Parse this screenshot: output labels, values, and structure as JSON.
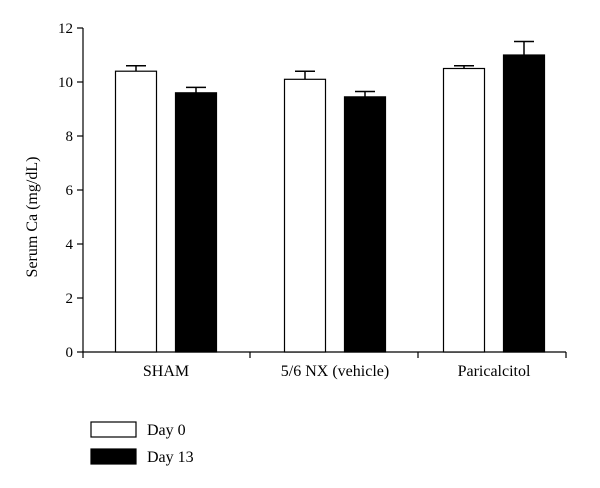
{
  "chart_data": {
    "type": "bar",
    "ylabel": "Serum Ca (mg/dL)",
    "xlabel": "",
    "ylim": [
      0,
      12
    ],
    "yticks": [
      "0",
      "2",
      "4",
      "6",
      "8",
      "10",
      "12"
    ],
    "categories": [
      "SHAM",
      "5/6 NX (vehicle)",
      "Paricalcitol"
    ],
    "series": [
      {
        "name": "Day 0",
        "color": "#ffffff",
        "values": [
          10.4,
          10.1,
          10.5
        ],
        "errors": [
          0.2,
          0.3,
          0.1
        ]
      },
      {
        "name": "Day 13",
        "color": "#000000",
        "values": [
          9.6,
          9.45,
          11.0
        ],
        "errors": [
          0.2,
          0.2,
          0.5
        ]
      }
    ],
    "legend_position": "bottom-left",
    "grid": false
  }
}
